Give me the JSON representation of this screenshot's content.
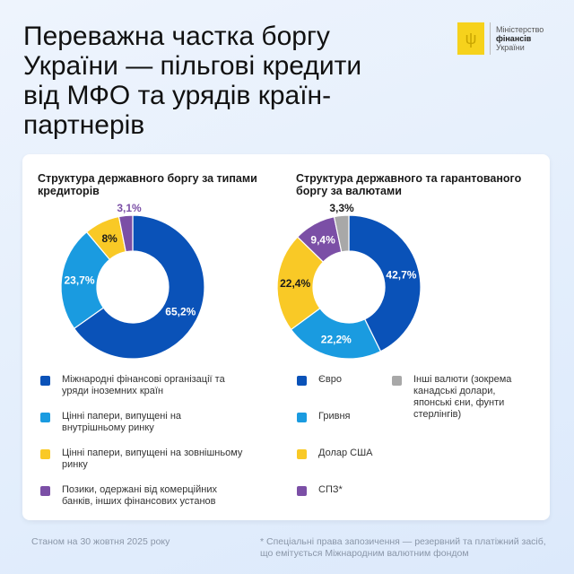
{
  "header": {
    "title": "Переважна частка боргу України — пільгові кредити від МФО та урядів країн-партнерів",
    "logo": {
      "line1": "Міністерство",
      "line2": "фінансів",
      "line3": "України"
    }
  },
  "colors": {
    "dark_blue": "#0a52b8",
    "light_blue": "#1a9be0",
    "yellow": "#f9c926",
    "purple": "#7b4fa6",
    "gray": "#a8a8a8"
  },
  "chart_data": [
    {
      "type": "pie",
      "title": "Структура державного боргу за типами кредиторів",
      "slices": [
        {
          "label": "Міжнародні фінансові організації та уряди іноземних країн",
          "value": 65.2,
          "text": "65,2%",
          "color": "#0a52b8"
        },
        {
          "label": "Цінні папери, випущені на внутрішньому ринку",
          "value": 23.7,
          "text": "23,7%",
          "color": "#1a9be0"
        },
        {
          "label": "Цінні папери, випущені на зовнішньому ринку",
          "value": 8,
          "text": "8%",
          "color": "#f9c926"
        },
        {
          "label": "Позики, одержані від комерційних банків, інших фінансових установ",
          "value": 3.1,
          "text": "3,1%",
          "color": "#7b4fa6"
        }
      ]
    },
    {
      "type": "pie",
      "title": "Структура державного та гарантованого боргу за валютами",
      "slices": [
        {
          "label": "Євро",
          "value": 42.7,
          "text": "42,7%",
          "color": "#0a52b8"
        },
        {
          "label": "Гривня",
          "value": 22.2,
          "text": "22,2%",
          "color": "#1a9be0"
        },
        {
          "label": "Долар США",
          "value": 22.4,
          "text": "22,4%",
          "color": "#f9c926"
        },
        {
          "label": "СПЗ*",
          "value": 9.4,
          "text": "9,4%",
          "color": "#7b4fa6"
        },
        {
          "label": "Інші валюти (зокрема канадські долари, японські єни, фунти стерлінгів)",
          "value": 3.3,
          "text": "3,3%",
          "color": "#a8a8a8"
        }
      ]
    }
  ],
  "footer": {
    "date": "Станом на 30 жовтня 2025 року",
    "note": "* Спеціальні права запозичення — резервний та платіжний засіб, що емітується Міжнародним валютним фондом"
  }
}
